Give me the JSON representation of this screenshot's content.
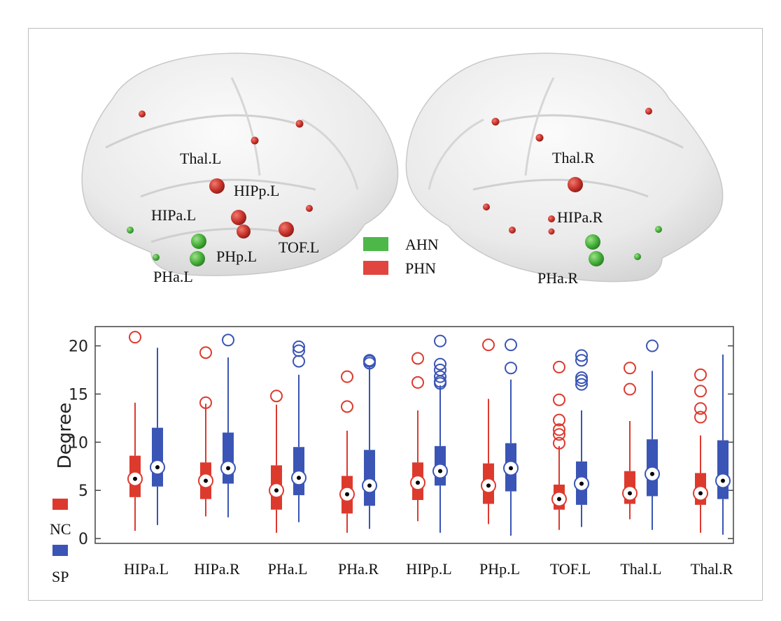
{
  "brain_figure": {
    "legend": [
      {
        "label": "AHN",
        "color": "#4db848"
      },
      {
        "label": "PHN",
        "color": "#e0463f"
      }
    ],
    "left_hemisphere_labels": [
      "Thal.L",
      "HIPp.L",
      "HIPa.L",
      "PHp.L",
      "TOF.L",
      "PHa.L"
    ],
    "right_hemisphere_labels": [
      "Thal.R",
      "HIPa.R",
      "PHa.R"
    ]
  },
  "chart_data": {
    "type": "box",
    "ylabel": "Degree",
    "xlabel": "",
    "ylim": [
      -0.5,
      22
    ],
    "yticks": [
      0,
      5,
      10,
      15,
      20
    ],
    "grid": false,
    "legend_position": "left",
    "categories": [
      "HIPa.L",
      "HIPa.R",
      "PHa.L",
      "PHa.R",
      "HIPp.L",
      "PHp.L",
      "TOF.L",
      "Thal.L",
      "Thal.R"
    ],
    "series": [
      {
        "name": "NC",
        "color": "#dd3a2e",
        "boxes": [
          {
            "min": 0.8,
            "q1": 4.3,
            "median": 6.2,
            "q3": 8.6,
            "max": 14.1,
            "outliers": [
              20.9
            ]
          },
          {
            "min": 2.3,
            "q1": 4.1,
            "median": 6.0,
            "q3": 7.9,
            "max": 14.0,
            "outliers": [
              19.3,
              14.1
            ]
          },
          {
            "min": 0.6,
            "q1": 3.0,
            "median": 5.0,
            "q3": 7.6,
            "max": 13.9,
            "outliers": [
              14.8
            ]
          },
          {
            "min": 0.6,
            "q1": 2.6,
            "median": 4.6,
            "q3": 6.5,
            "max": 11.2,
            "outliers": [
              16.8,
              13.7
            ]
          },
          {
            "min": 1.8,
            "q1": 4.0,
            "median": 5.8,
            "q3": 7.9,
            "max": 13.3,
            "outliers": [
              18.7,
              16.2
            ]
          },
          {
            "min": 1.5,
            "q1": 3.6,
            "median": 5.5,
            "q3": 7.8,
            "max": 14.5,
            "outliers": [
              20.1
            ]
          },
          {
            "min": 0.9,
            "q1": 3.0,
            "median": 4.1,
            "q3": 5.6,
            "max": 9.6,
            "outliers": [
              17.8,
              14.4,
              12.3,
              11.3,
              10.8,
              9.9
            ]
          },
          {
            "min": 2.0,
            "q1": 3.6,
            "median": 4.7,
            "q3": 7.0,
            "max": 12.2,
            "outliers": [
              17.7,
              15.5
            ]
          },
          {
            "min": 0.6,
            "q1": 3.5,
            "median": 4.7,
            "q3": 6.8,
            "max": 10.7,
            "outliers": [
              17.0,
              15.3,
              13.5,
              12.6
            ]
          }
        ]
      },
      {
        "name": "SP",
        "color": "#3a55b5",
        "boxes": [
          {
            "min": 1.4,
            "q1": 5.4,
            "median": 7.4,
            "q3": 11.5,
            "max": 19.8,
            "outliers": []
          },
          {
            "min": 2.2,
            "q1": 5.7,
            "median": 7.3,
            "q3": 11.0,
            "max": 18.8,
            "outliers": [
              20.6
            ]
          },
          {
            "min": 1.7,
            "q1": 4.5,
            "median": 6.3,
            "q3": 9.5,
            "max": 17.0,
            "outliers": [
              19.9,
              19.5,
              18.4
            ]
          },
          {
            "min": 1.0,
            "q1": 3.4,
            "median": 5.5,
            "q3": 9.2,
            "max": 17.8,
            "outliers": [
              18.5,
              18.4,
              18.2
            ]
          },
          {
            "min": 0.6,
            "q1": 5.5,
            "median": 7.0,
            "q3": 9.6,
            "max": 15.9,
            "outliers": [
              20.5,
              18.1,
              17.5,
              16.8,
              16.3,
              16.1
            ]
          },
          {
            "min": 0.3,
            "q1": 4.9,
            "median": 7.3,
            "q3": 9.9,
            "max": 16.5,
            "outliers": [
              20.1,
              17.7
            ]
          },
          {
            "min": 1.2,
            "q1": 3.5,
            "median": 5.7,
            "q3": 8.0,
            "max": 13.3,
            "outliers": [
              19.0,
              18.5,
              16.7,
              16.4,
              16.0
            ]
          },
          {
            "min": 0.9,
            "q1": 4.4,
            "median": 6.7,
            "q3": 10.3,
            "max": 17.4,
            "outliers": [
              20.0
            ]
          },
          {
            "min": 0.4,
            "q1": 4.1,
            "median": 6.0,
            "q3": 10.2,
            "max": 19.1,
            "outliers": []
          }
        ]
      }
    ]
  }
}
